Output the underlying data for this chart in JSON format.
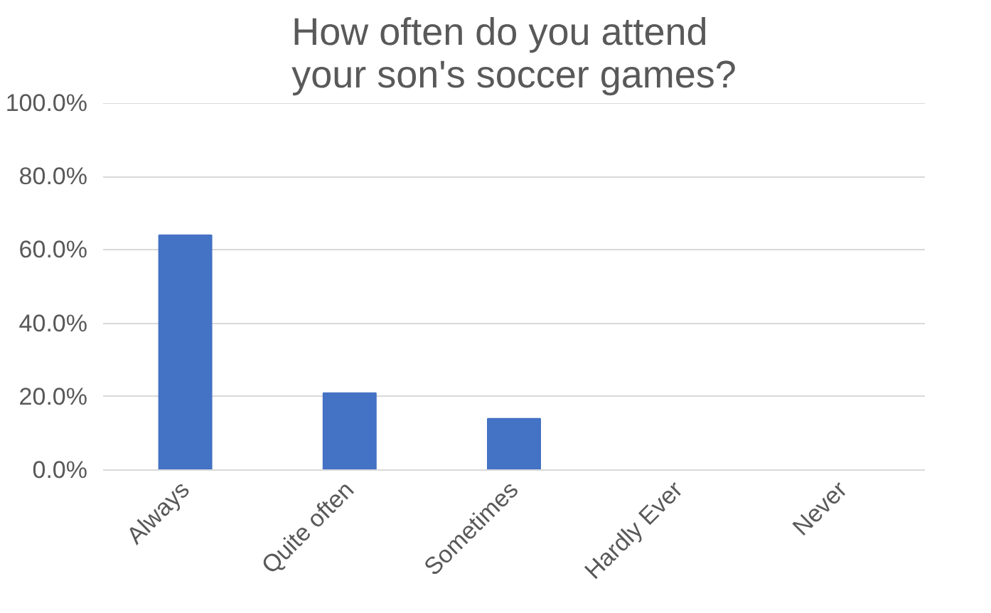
{
  "chart_data": {
    "type": "bar",
    "title": "How often do you attend\nyour son's soccer games?",
    "categories": [
      "Always",
      "Quite often",
      "Sometimes",
      "Hardly Ever",
      "Never"
    ],
    "values": [
      64,
      21,
      14,
      0,
      0
    ],
    "color": "#4472c4",
    "ylim": [
      0,
      100
    ],
    "yticks": [
      {
        "value": 0,
        "label": "0.0%"
      },
      {
        "value": 20,
        "label": "20.0%"
      },
      {
        "value": 40,
        "label": "40.0%"
      },
      {
        "value": 60,
        "label": "60.0%"
      },
      {
        "value": 80,
        "label": "80.0%"
      },
      {
        "value": 100,
        "label": "100.0%"
      }
    ],
    "grid": "y"
  }
}
